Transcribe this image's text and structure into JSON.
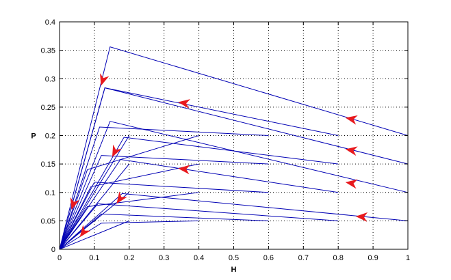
{
  "chart_data": {
    "type": "line",
    "title": "",
    "xlabel": "H",
    "ylabel": "P",
    "xlim": [
      0,
      1
    ],
    "ylim": [
      0,
      0.4
    ],
    "xticks": [
      "0",
      "0.1",
      "0.2",
      "0.3",
      "0.4",
      "0.5",
      "0.6",
      "0.7",
      "0.8",
      "0.9",
      "1"
    ],
    "yticks": [
      "0",
      "0.05",
      "0.1",
      "0.15",
      "0.2",
      "0.25",
      "0.3",
      "0.35",
      "0.4"
    ],
    "grid": true,
    "line_color": "#0000b4",
    "arrow_color": "#e8191e",
    "series": [
      {
        "x": [
          1.0,
          0.145,
          0.0
        ],
        "y": [
          0.2,
          0.356,
          0.0
        ]
      },
      {
        "x": [
          1.0,
          0.13,
          0.0
        ],
        "y": [
          0.15,
          0.284,
          0.0
        ]
      },
      {
        "x": [
          1.0,
          0.145,
          0.0
        ],
        "y": [
          0.1,
          0.225,
          0.0
        ]
      },
      {
        "x": [
          1.0,
          0.18,
          0.0
        ],
        "y": [
          0.05,
          0.098,
          0.0
        ]
      },
      {
        "x": [
          0.8,
          0.13,
          0.0
        ],
        "y": [
          0.2,
          0.284,
          0.0
        ]
      },
      {
        "x": [
          0.8,
          0.185,
          0.0
        ],
        "y": [
          0.15,
          0.197,
          0.0
        ]
      },
      {
        "x": [
          0.8,
          0.175,
          0.0
        ],
        "y": [
          0.1,
          0.158,
          0.0
        ]
      },
      {
        "x": [
          0.8,
          0.11,
          0.0
        ],
        "y": [
          0.05,
          0.08,
          0.0
        ]
      },
      {
        "x": [
          0.6,
          0.115,
          0.0
        ],
        "y": [
          0.2,
          0.215,
          0.0
        ]
      },
      {
        "x": [
          0.6,
          0.12,
          0.0
        ],
        "y": [
          0.15,
          0.165,
          0.0
        ]
      },
      {
        "x": [
          0.6,
          0.1,
          0.0
        ],
        "y": [
          0.1,
          0.118,
          0.0
        ]
      },
      {
        "x": [
          0.6,
          0.12,
          0.0
        ],
        "y": [
          0.05,
          0.062,
          0.0
        ]
      },
      {
        "x": [
          0.4,
          0.08,
          0.0
        ],
        "y": [
          0.2,
          0.14,
          0.0
        ]
      },
      {
        "x": [
          0.4,
          0.09,
          0.0
        ],
        "y": [
          0.15,
          0.11,
          0.0
        ]
      },
      {
        "x": [
          0.4,
          0.08,
          0.0
        ],
        "y": [
          0.1,
          0.075,
          0.0
        ]
      },
      {
        "x": [
          0.4,
          0.12,
          0.0
        ],
        "y": [
          0.05,
          0.046,
          0.0
        ]
      },
      {
        "x": [
          0.2,
          0.0
        ],
        "y": [
          0.2,
          0.0
        ]
      },
      {
        "x": [
          0.2,
          0.0
        ],
        "y": [
          0.15,
          0.0
        ]
      },
      {
        "x": [
          0.2,
          0.0
        ],
        "y": [
          0.1,
          0.0
        ]
      },
      {
        "x": [
          0.2,
          0.0
        ],
        "y": [
          0.05,
          0.0
        ]
      }
    ],
    "arrows": [
      {
        "x": 0.84,
        "y": 0.229,
        "dx": -1.0,
        "dy": 0.19
      },
      {
        "x": 0.84,
        "y": 0.174,
        "dx": -1.0,
        "dy": 0.17
      },
      {
        "x": 0.84,
        "y": 0.116,
        "dx": -1.0,
        "dy": 0.15
      },
      {
        "x": 0.87,
        "y": 0.057,
        "dx": -1.0,
        "dy": 0.06
      },
      {
        "x": 0.36,
        "y": 0.257,
        "dx": -1.0,
        "dy": 0.15
      },
      {
        "x": 0.36,
        "y": 0.141,
        "dx": -1.0,
        "dy": 0.1
      },
      {
        "x": 0.125,
        "y": 0.299,
        "dx": -0.32,
        "dy": -1.0
      },
      {
        "x": 0.16,
        "y": 0.173,
        "dx": -0.5,
        "dy": -1.0
      },
      {
        "x": 0.175,
        "y": 0.09,
        "dx": -0.7,
        "dy": -1.0
      },
      {
        "x": 0.04,
        "y": 0.081,
        "dx": -0.3,
        "dy": -1.0
      },
      {
        "x": 0.07,
        "y": 0.031,
        "dx": -0.75,
        "dy": -1.0
      }
    ]
  }
}
